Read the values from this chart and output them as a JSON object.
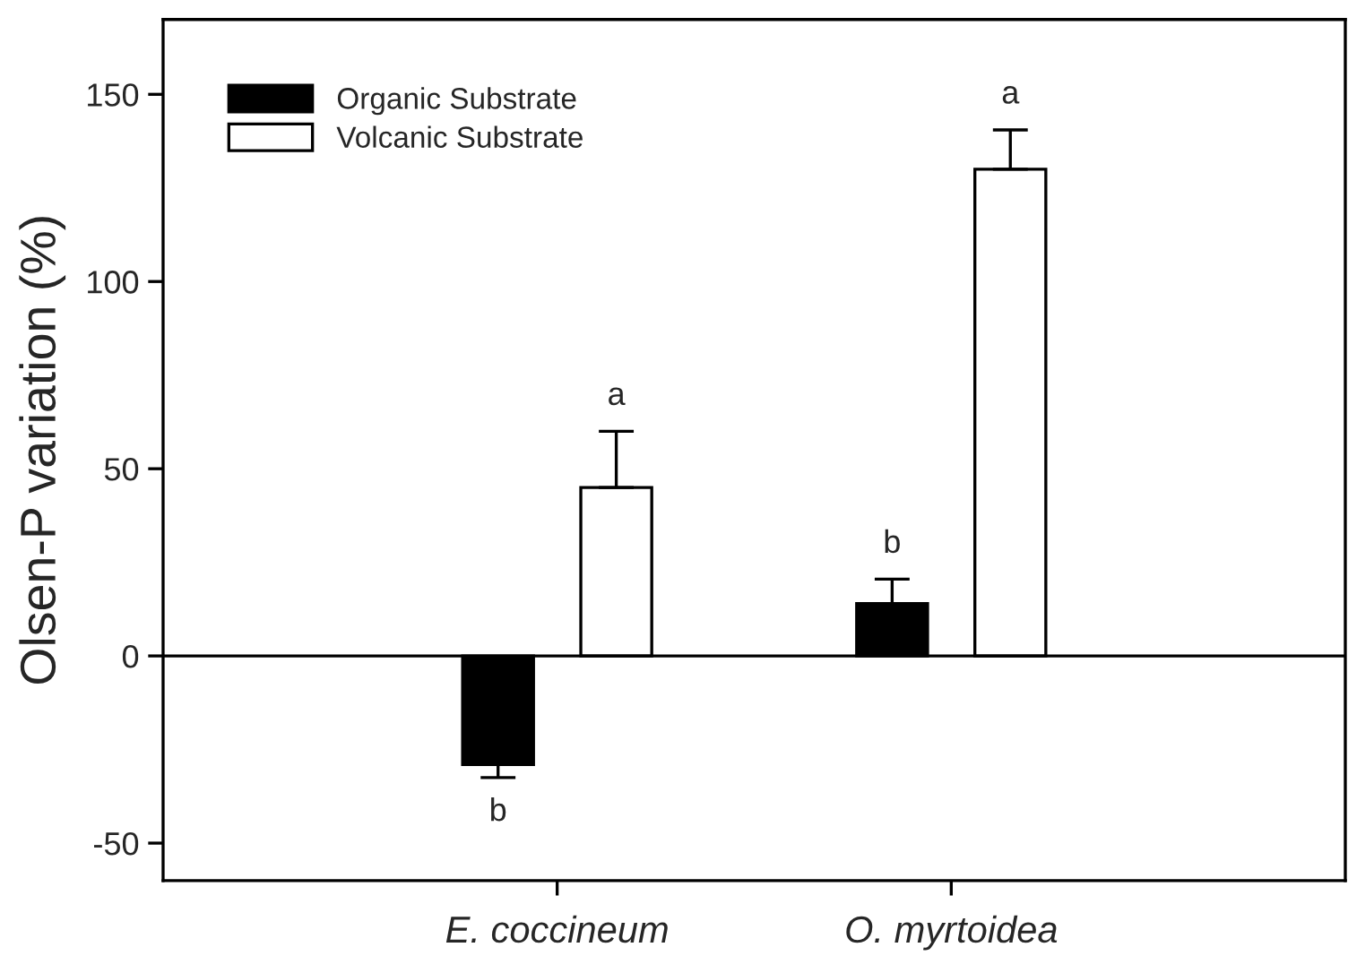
{
  "chart_data": {
    "type": "bar",
    "ylabel": "Olsen-P variation (%)",
    "categories": [
      "E. coccineum",
      "O. myrtoidea"
    ],
    "series": [
      {
        "name": "Organic Substrate",
        "color": "#000000",
        "values": [
          -29,
          14
        ],
        "errors": [
          [
            -32.5,
            -29
          ],
          [
            14,
            20.5
          ]
        ]
      },
      {
        "name": "Volcanic Substrate",
        "color": "#ffffff",
        "values": [
          45,
          130
        ],
        "errors": [
          [
            45,
            60
          ],
          [
            130,
            140.5
          ]
        ]
      }
    ],
    "ylim": [
      -60,
      170
    ],
    "yticks": [
      -50,
      0,
      50,
      100,
      150
    ],
    "ref_lines": [
      {
        "axis": "y",
        "value": 0
      }
    ],
    "annotations": [
      "b",
      "a",
      "b",
      "a"
    ],
    "grid": false,
    "legend": "top left"
  }
}
